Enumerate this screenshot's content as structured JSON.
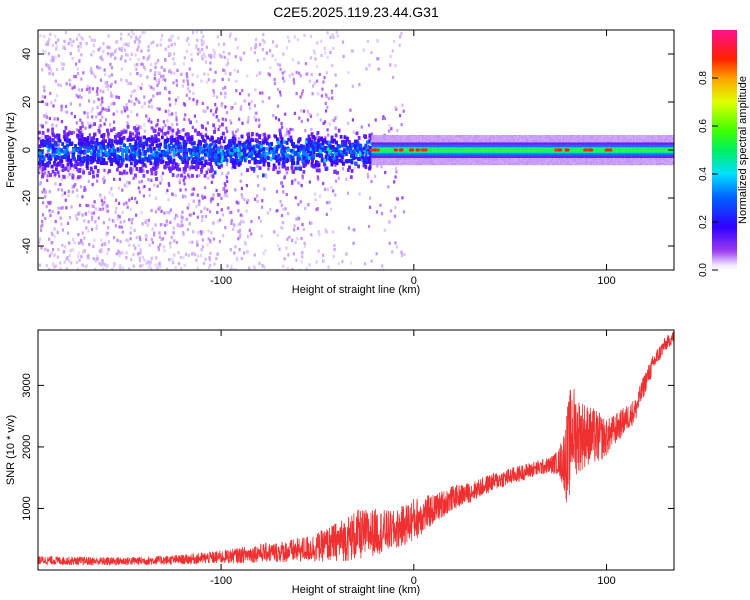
{
  "title": "C2E5.2025.119.23.44.G31",
  "colors": {
    "snr_line": "#f03030",
    "axis": "#000000",
    "background": "#ffffff"
  },
  "chart_data": [
    {
      "type": "heatmap",
      "title": "C2E5.2025.119.23.44.G31",
      "xlabel": "Height of straight line (km)",
      "ylabel": "Frequency (Hz)",
      "xlim": [
        -195,
        135
      ],
      "ylim": [
        -50,
        50
      ],
      "x_ticks": [
        -100,
        0,
        100
      ],
      "x_tick_labels": [
        "-100",
        "0",
        "100"
      ],
      "y_ticks": [
        -40,
        -20,
        0,
        20,
        40
      ],
      "y_tick_labels": [
        "-40",
        "-20",
        "0",
        "20",
        "40"
      ],
      "colorbar": {
        "label": "Normalized spectral amplitude",
        "range": [
          0,
          1
        ],
        "ticks": [
          0,
          0.2,
          0.4,
          0.6,
          0.8
        ],
        "tick_labels": [
          "0.0",
          "0.2",
          "0.4",
          "0.6",
          "0.8"
        ],
        "colormap": "rainbow (white-violet-blue-cyan-green-yellow-red-magenta)"
      },
      "features": {
        "scatter_region_x": [
          -195,
          -25
        ],
        "scatter_region_freq_range": [
          -50,
          50
        ],
        "core_band_center_hz": 0,
        "core_band_halfwidth_hz": 6,
        "narrow_line_start_km": -22,
        "narrow_line_halfwidth_hz": 2,
        "red_peaks_km": [
          -20,
          -8,
          0,
          5,
          75,
          80,
          90,
          100
        ]
      },
      "grid": false
    },
    {
      "type": "line",
      "xlabel": "Height of straight line (km)",
      "ylabel": "SNR (10 * v/v)",
      "xlim": [
        -195,
        135
      ],
      "ylim": [
        0,
        3900
      ],
      "x_ticks": [
        -100,
        0,
        100
      ],
      "x_tick_labels": [
        "-100",
        "0",
        "100"
      ],
      "y_ticks": [
        1000,
        2000,
        3000
      ],
      "y_tick_labels": [
        "1000",
        "2000",
        "3000"
      ],
      "grid": false,
      "series": [
        {
          "color": "#f03030",
          "x": [
            -195,
            -180,
            -160,
            -140,
            -120,
            -100,
            -90,
            -80,
            -70,
            -60,
            -50,
            -40,
            -30,
            -20,
            -10,
            0,
            10,
            20,
            30,
            40,
            50,
            60,
            70,
            75,
            78,
            80,
            82,
            85,
            90,
            95,
            100,
            105,
            110,
            115,
            120,
            125,
            130,
            135
          ],
          "values": [
            160,
            150,
            140,
            150,
            170,
            210,
            240,
            280,
            290,
            320,
            370,
            460,
            560,
            620,
            640,
            820,
            980,
            1170,
            1270,
            1420,
            1520,
            1620,
            1700,
            1750,
            1800,
            1850,
            2300,
            2200,
            2200,
            2150,
            2150,
            2300,
            2450,
            2600,
            3050,
            3400,
            3650,
            3800
          ],
          "noise_amplitude": [
            70,
            70,
            70,
            70,
            80,
            110,
            130,
            150,
            170,
            200,
            240,
            320,
            420,
            380,
            320,
            360,
            250,
            200,
            160,
            150,
            140,
            130,
            130,
            200,
            500,
            900,
            800,
            650,
            500,
            450,
            300,
            250,
            220,
            200,
            180,
            150,
            120,
            100
          ]
        }
      ]
    }
  ]
}
